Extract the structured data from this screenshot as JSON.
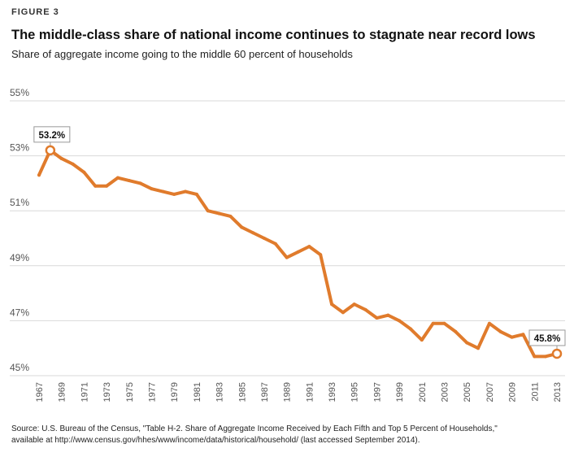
{
  "header": {
    "figure_label": "FIGURE 3",
    "title": "The middle-class share of national income continues to stagnate near record lows",
    "subtitle": "Share of aggregate income going to the middle 60 percent of households"
  },
  "footer": {
    "source_line1": "Source: U.S. Bureau of the Census, \"Table H-2. Share of Aggregate Income Received by Each Fifth and Top 5 Percent of Households,\"",
    "source_line2": "available at http://www.census.gov/hhes/www/income/data/historical/household/ (last accessed September 2014)."
  },
  "colors": {
    "line": "#E07B2C",
    "grid": "#d9d9d9",
    "axis_text": "#555555"
  },
  "chart_data": {
    "type": "line",
    "x": [
      1967,
      1968,
      1969,
      1970,
      1971,
      1972,
      1973,
      1974,
      1975,
      1976,
      1977,
      1978,
      1979,
      1980,
      1981,
      1982,
      1983,
      1984,
      1985,
      1986,
      1987,
      1988,
      1989,
      1990,
      1991,
      1992,
      1993,
      1994,
      1995,
      1996,
      1997,
      1998,
      1999,
      2000,
      2001,
      2002,
      2003,
      2004,
      2005,
      2006,
      2007,
      2008,
      2009,
      2010,
      2011,
      2012,
      2013
    ],
    "series": [
      {
        "values": [
          52.3,
          53.2,
          52.9,
          52.7,
          52.4,
          51.9,
          51.9,
          52.2,
          52.1,
          52.0,
          51.8,
          51.7,
          51.6,
          51.7,
          51.6,
          51.0,
          50.9,
          50.8,
          50.4,
          50.2,
          50.0,
          49.8,
          49.3,
          49.5,
          49.7,
          49.4,
          47.6,
          47.3,
          47.6,
          47.4,
          47.1,
          47.2,
          47.0,
          46.7,
          46.3,
          46.9,
          46.9,
          46.6,
          46.2,
          46.0,
          46.9,
          46.6,
          46.4,
          46.5,
          45.7,
          45.7,
          45.8
        ]
      }
    ],
    "y_ticks": [
      "45%",
      "47%",
      "49%",
      "51%",
      "53%",
      "55%"
    ],
    "x_ticks": [
      "1967",
      "1969",
      "1971",
      "1973",
      "1975",
      "1977",
      "1979",
      "1981",
      "1983",
      "1985",
      "1987",
      "1989",
      "1991",
      "1993",
      "1995",
      "1997",
      "1999",
      "2001",
      "2003",
      "2005",
      "2007",
      "2009",
      "2011",
      "2013"
    ],
    "ylim": [
      45,
      55
    ],
    "xlim": [
      1967,
      2013
    ],
    "grid": "horizontal",
    "annotations": [
      {
        "x": 1968,
        "y": 53.2,
        "label": "53.2%"
      },
      {
        "x": 2013,
        "y": 45.8,
        "label": "45.8%"
      }
    ]
  }
}
